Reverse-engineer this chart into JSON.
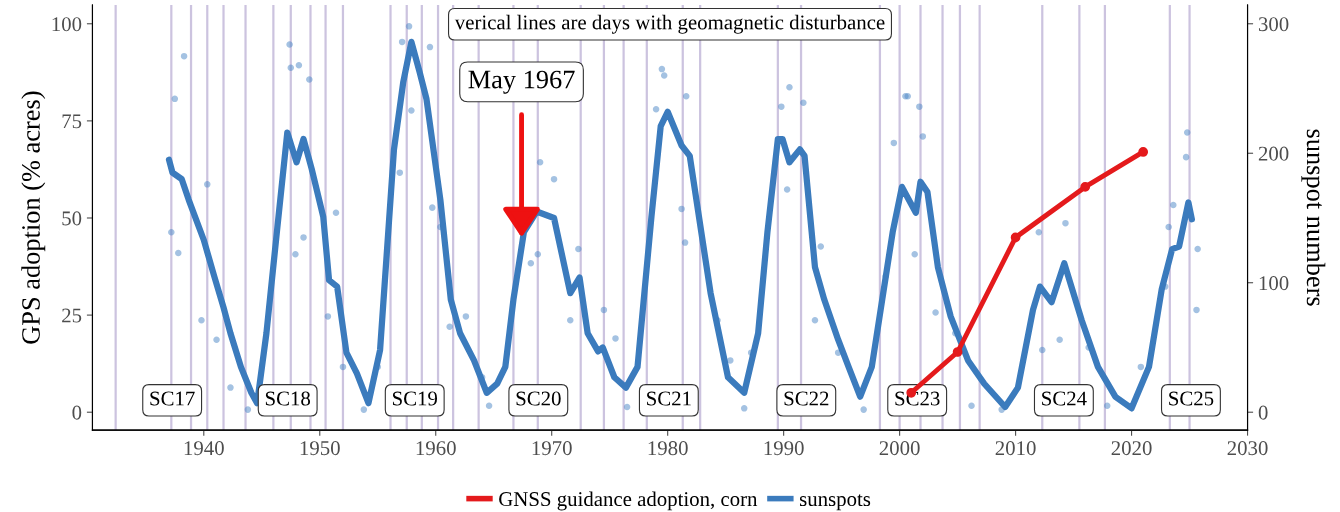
{
  "chart_data": {
    "type": "line",
    "xlim": [
      1930.4,
      2030
    ],
    "xticks": [
      1940,
      1950,
      1960,
      1970,
      1980,
      1990,
      2000,
      2010,
      2020,
      2030
    ],
    "ylim": [
      -4.6,
      104.8
    ],
    "yticks": [
      0,
      25,
      50,
      75,
      100
    ],
    "y2lim": [
      -13.8,
      314.4
    ],
    "y2ticks": [
      0,
      100,
      200,
      300
    ],
    "ylabel": "GPS adoption (% acres)",
    "y2label": "sunspot numbers",
    "grid": false,
    "legend": "bottom",
    "series": [
      {
        "name": "GNSS guidance adoption, corn",
        "color": "#e41a1c",
        "marker": "circle",
        "x": [
          2001,
          2005,
          2010,
          2016,
          2021
        ],
        "values": [
          5,
          15.5,
          45,
          58,
          67
        ]
      },
      {
        "type": "scatter",
        "axis": "y2",
        "color": "#4a86c5",
        "x": [
          1937.2,
          1937.5,
          1937.8,
          1938.3,
          1939.8,
          1940.3,
          1941.1,
          1942.3,
          1943.8,
          1947.4,
          1947.5,
          1947.9,
          1948.2,
          1948.6,
          1949.1,
          1950.7,
          1951.4,
          1952.0,
          1953.8,
          1955.0,
          1956.9,
          1957.1,
          1957.7,
          1957.9,
          1959.5,
          1959.7,
          1960.4,
          1961.2,
          1962.6,
          1964.0,
          1964.6,
          1968.2,
          1968.8,
          1969.0,
          1970.2,
          1971.6,
          1972.3,
          1974.5,
          1975.5,
          1976.5,
          1979.0,
          1979.5,
          1979.7,
          1981.2,
          1981.5,
          1981.6,
          1984.3,
          1985.4,
          1986.6,
          1987.2,
          1989.8,
          1990.3,
          1990.5,
          1991.7,
          1992.7,
          1993.2,
          1994.7,
          1996.9,
          1998.8,
          1999.5,
          2000.5,
          2000.7,
          2001.3,
          2001.7,
          2002.0,
          2003.1,
          2004.8,
          2006.2,
          2008.8,
          2012.0,
          2012.3,
          2013.8,
          2014.3,
          2016.3,
          2017.9,
          2020.8,
          2022.9,
          2023.2,
          2023.6,
          2024.7,
          2024.8,
          2025.6,
          2025.7
        ],
        "values": [
          139,
          242,
          123,
          275,
          71,
          176,
          56,
          19,
          2,
          284,
          266,
          122,
          268,
          135,
          257,
          74,
          154,
          35,
          2,
          35,
          185,
          286,
          298,
          233,
          282,
          158,
          143,
          66,
          74,
          27,
          5,
          115,
          122,
          193,
          180,
          71,
          126,
          79,
          57,
          4,
          234,
          265,
          260,
          157,
          131,
          244,
          71,
          40,
          3,
          46,
          236,
          172,
          251,
          239,
          71,
          128,
          46,
          2,
          105,
          208,
          244,
          244,
          122,
          236,
          213,
          77,
          61,
          5,
          2,
          139,
          48,
          56,
          146,
          50,
          5,
          35,
          97,
          143,
          160,
          197,
          216,
          79,
          126
        ]
      },
      {
        "axis": "y2",
        "name": "sunspots",
        "color": "#3b7bbd",
        "x": [
          1937.0,
          1937.3,
          1938.1,
          1938.7,
          1940.0,
          1940.9,
          1941.7,
          1942.3,
          1943.2,
          1944.1,
          1944.6,
          1945.4,
          1946.3,
          1947.2,
          1948.0,
          1948.6,
          1949.3,
          1950.3,
          1950.8,
          1951.5,
          1952.3,
          1953.2,
          1954.2,
          1955.2,
          1956.4,
          1957.2,
          1957.9,
          1958.6,
          1959.2,
          1960.4,
          1961.3,
          1962.1,
          1963.3,
          1964.4,
          1965.3,
          1966.0,
          1966.7,
          1967.6,
          1968.7,
          1970.2,
          1971.6,
          1972.4,
          1973.1,
          1974.0,
          1974.4,
          1975.4,
          1976.4,
          1977.4,
          1978.6,
          1979.4,
          1980.0,
          1981.2,
          1981.9,
          1982.9,
          1983.7,
          1985.2,
          1986.6,
          1987.8,
          1988.6,
          1989.5,
          1989.9,
          1990.5,
          1991.4,
          1991.8,
          1992.7,
          1993.5,
          1994.7,
          1995.6,
          1996.6,
          1997.6,
          1998.5,
          1999.4,
          2000.2,
          2001.4,
          2001.8,
          2002.4,
          2003.3,
          2004.4,
          2005.9,
          2007.3,
          2009.1,
          2010.2,
          2011.5,
          2012.1,
          2013.1,
          2014.2,
          2015.7,
          2017.1,
          2018.6,
          2020.0,
          2021.5,
          2022.6,
          2023.5,
          2024.1,
          2024.9,
          2025.2
        ],
        "values": [
          195,
          185,
          180,
          164,
          133,
          105,
          81,
          61,
          35,
          15,
          7,
          61,
          139,
          216,
          193,
          211,
          188,
          151,
          102,
          97,
          46,
          30,
          7,
          48,
          203,
          255,
          286,
          263,
          242,
          164,
          87,
          61,
          40,
          15,
          22,
          35,
          87,
          139,
          155,
          150,
          92,
          104,
          61,
          47,
          50,
          27,
          19,
          35,
          151,
          221,
          232,
          206,
          198,
          139,
          92,
          27,
          15,
          61,
          139,
          211,
          211,
          193,
          203,
          198,
          112,
          87,
          56,
          35,
          12,
          35,
          87,
          139,
          174,
          154,
          178,
          170,
          112,
          74,
          40,
          22,
          4,
          19,
          79,
          97,
          85,
          115,
          71,
          35,
          12,
          3,
          35,
          95,
          126,
          128,
          162,
          149
        ]
      }
    ],
    "ref_lines": [
      {
        "axis": "x",
        "value": 1932.4,
        "color": "#9a88c0"
      },
      {
        "axis": "x",
        "value": 1937.2,
        "color": "#9a88c0"
      },
      {
        "axis": "x",
        "value": 1938.9,
        "color": "#9a88c0"
      },
      {
        "axis": "x",
        "value": 1940.3,
        "color": "#9a88c0"
      },
      {
        "axis": "x",
        "value": 1941.7,
        "color": "#9a88c0"
      },
      {
        "axis": "x",
        "value": 1943.6,
        "color": "#9a88c0"
      },
      {
        "axis": "x",
        "value": 1946.0,
        "color": "#9a88c0"
      },
      {
        "axis": "x",
        "value": 1947.5,
        "color": "#9a88c0"
      },
      {
        "axis": "x",
        "value": 1949.2,
        "color": "#9a88c0"
      },
      {
        "axis": "x",
        "value": 1950.5,
        "color": "#9a88c0"
      },
      {
        "axis": "x",
        "value": 1952.0,
        "color": "#9a88c0"
      },
      {
        "axis": "x",
        "value": 1956.1,
        "color": "#9a88c0"
      },
      {
        "axis": "x",
        "value": 1957.5,
        "color": "#9a88c0"
      },
      {
        "axis": "x",
        "value": 1958.8,
        "color": "#9a88c0"
      },
      {
        "axis": "x",
        "value": 1960.2,
        "color": "#9a88c0"
      },
      {
        "axis": "x",
        "value": 1961.5,
        "color": "#9a88c0"
      },
      {
        "axis": "x",
        "value": 1963.7,
        "color": "#9a88c0"
      },
      {
        "axis": "x",
        "value": 1966.7,
        "color": "#9a88c0"
      },
      {
        "axis": "x",
        "value": 1968.8,
        "color": "#9a88c0"
      },
      {
        "axis": "x",
        "value": 1972.5,
        "color": "#9a88c0"
      },
      {
        "axis": "x",
        "value": 1974.5,
        "color": "#9a88c0"
      },
      {
        "axis": "x",
        "value": 1976.2,
        "color": "#9a88c0"
      },
      {
        "axis": "x",
        "value": 1978.2,
        "color": "#9a88c0"
      },
      {
        "axis": "x",
        "value": 1981.3,
        "color": "#9a88c0"
      },
      {
        "axis": "x",
        "value": 1982.8,
        "color": "#9a88c0"
      },
      {
        "axis": "x",
        "value": 1989.5,
        "color": "#9a88c0"
      },
      {
        "axis": "x",
        "value": 1991.5,
        "color": "#9a88c0"
      },
      {
        "axis": "x",
        "value": 1998.3,
        "color": "#9a88c0"
      },
      {
        "axis": "x",
        "value": 2000.0,
        "color": "#9a88c0"
      },
      {
        "axis": "x",
        "value": 2001.8,
        "color": "#9a88c0"
      },
      {
        "axis": "x",
        "value": 2003.7,
        "color": "#9a88c0"
      },
      {
        "axis": "x",
        "value": 2005.2,
        "color": "#9a88c0"
      },
      {
        "axis": "x",
        "value": 2006.9,
        "color": "#9a88c0"
      },
      {
        "axis": "x",
        "value": 2012.3,
        "color": "#9a88c0"
      },
      {
        "axis": "x",
        "value": 2015.5,
        "color": "#9a88c0"
      },
      {
        "axis": "x",
        "value": 2017.7,
        "color": "#9a88c0"
      },
      {
        "axis": "x",
        "value": 2023.3,
        "color": "#9a88c0"
      },
      {
        "axis": "x",
        "value": 2025.0,
        "color": "#9a88c0"
      }
    ],
    "annotations": [
      "verical lines are days with geomagnetic disturbance",
      {
        "text": "May 1967",
        "x": 1967.4,
        "y": 45
      },
      "SC17",
      "SC18",
      "SC19",
      "SC20",
      "SC21",
      "SC22",
      "SC23",
      "SC24",
      "SC25"
    ]
  }
}
